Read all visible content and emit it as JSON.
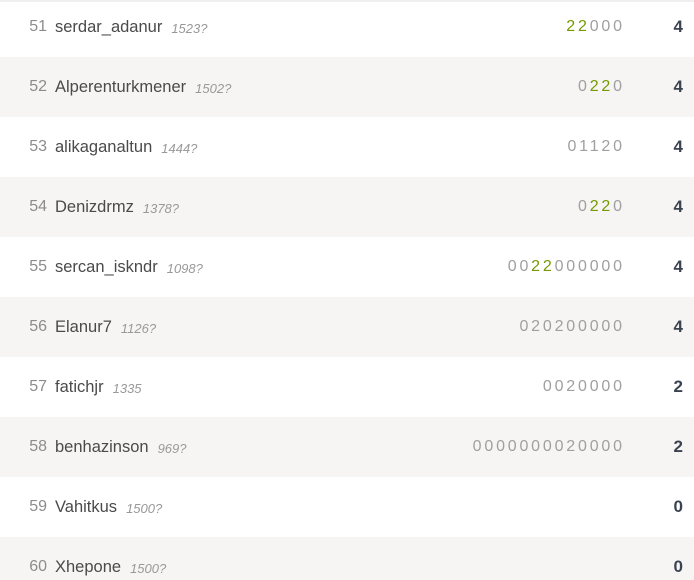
{
  "colors": {
    "zebra_row_bg": "#f6f5f3",
    "plain_row_bg": "#ffffff",
    "streak_win_green": "#759900",
    "sheet_gray": "#9f9f9f",
    "total_color": "#3b4351",
    "rank_color": "#8c8c8c",
    "player_color": "#4a4a4a",
    "rating_color": "#999999"
  },
  "standings": {
    "rows": [
      {
        "rank": "51",
        "username": "serdar_adanur",
        "rating": "1523?",
        "sheet": "22000",
        "green_indices": [
          0,
          1
        ],
        "total": "4"
      },
      {
        "rank": "52",
        "username": "Alperenturkmener",
        "rating": "1502?",
        "sheet": "0220",
        "green_indices": [
          1,
          2
        ],
        "total": "4"
      },
      {
        "rank": "53",
        "username": "alikaganaltun",
        "rating": "1444?",
        "sheet": "01120",
        "green_indices": [],
        "total": "4"
      },
      {
        "rank": "54",
        "username": "Denizdrmz",
        "rating": "1378?",
        "sheet": "0220",
        "green_indices": [
          1,
          2
        ],
        "total": "4"
      },
      {
        "rank": "55",
        "username": "sercan_iskndr",
        "rating": "1098?",
        "sheet": "0022000000",
        "green_indices": [
          2,
          3
        ],
        "total": "4"
      },
      {
        "rank": "56",
        "username": "Elanur7",
        "rating": "1126?",
        "sheet": "020200000",
        "green_indices": [],
        "total": "4"
      },
      {
        "rank": "57",
        "username": "fatichjr",
        "rating": "1335",
        "sheet": "0020000",
        "green_indices": [],
        "total": "2"
      },
      {
        "rank": "58",
        "username": "benhazinson",
        "rating": "969?",
        "sheet": "0000000020000",
        "green_indices": [],
        "total": "2"
      },
      {
        "rank": "59",
        "username": "Vahitkus",
        "rating": "1500?",
        "sheet": "",
        "green_indices": [],
        "total": "0"
      },
      {
        "rank": "60",
        "username": "Xhepone",
        "rating": "1500?",
        "sheet": "",
        "green_indices": [],
        "total": "0"
      }
    ]
  }
}
